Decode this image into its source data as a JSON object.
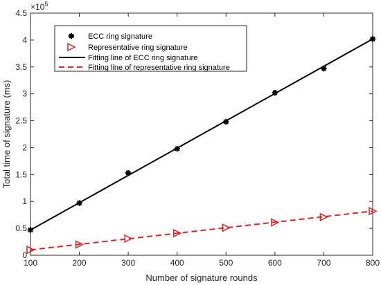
{
  "chart_data": {
    "type": "scatter",
    "xlabel": "Number of signature rounds",
    "ylabel": "Total time of signature (ms)",
    "y_multiplier_label": "×10",
    "y_multiplier_exp": "5",
    "xlim": [
      100,
      800
    ],
    "ylim": [
      0,
      450000
    ],
    "x_ticks": [
      100,
      200,
      300,
      400,
      500,
      600,
      700,
      800
    ],
    "x_tick_labels": [
      "100",
      "200",
      "300",
      "400",
      "500",
      "600",
      "700",
      "800"
    ],
    "y_ticks": [
      0,
      50000,
      100000,
      150000,
      200000,
      250000,
      300000,
      350000,
      400000,
      450000
    ],
    "y_tick_labels": [
      "0",
      "0.5",
      "1",
      "1.5",
      "2",
      "2.5",
      "3",
      "3.5",
      "4",
      "4.5"
    ],
    "grid": false,
    "legend_position": "top-left",
    "series": [
      {
        "name": "ECC ring signature",
        "kind": "markers",
        "marker": "asterisk",
        "color": "#000000",
        "x": [
          100,
          200,
          300,
          400,
          500,
          600,
          700,
          800
        ],
        "y": [
          47000,
          97000,
          153000,
          198000,
          248000,
          302000,
          347000,
          402000
        ]
      },
      {
        "name": "Representative ring signature",
        "kind": "markers",
        "marker": "triangle-right",
        "color": "#d62728",
        "x": [
          100,
          200,
          300,
          400,
          500,
          600,
          700,
          800
        ],
        "y": [
          10000,
          20000,
          31000,
          41000,
          51000,
          61000,
          71000,
          82000
        ]
      },
      {
        "name": "Fitting line of ECC ring signature",
        "kind": "line",
        "dash": "solid",
        "color": "#000000",
        "x": [
          100,
          800
        ],
        "y": [
          47000,
          402000
        ]
      },
      {
        "name": "Fitting line of representative ring signature",
        "kind": "line",
        "dash": "dashed",
        "color": "#d62728",
        "x": [
          100,
          800
        ],
        "y": [
          10000,
          82000
        ]
      }
    ]
  }
}
